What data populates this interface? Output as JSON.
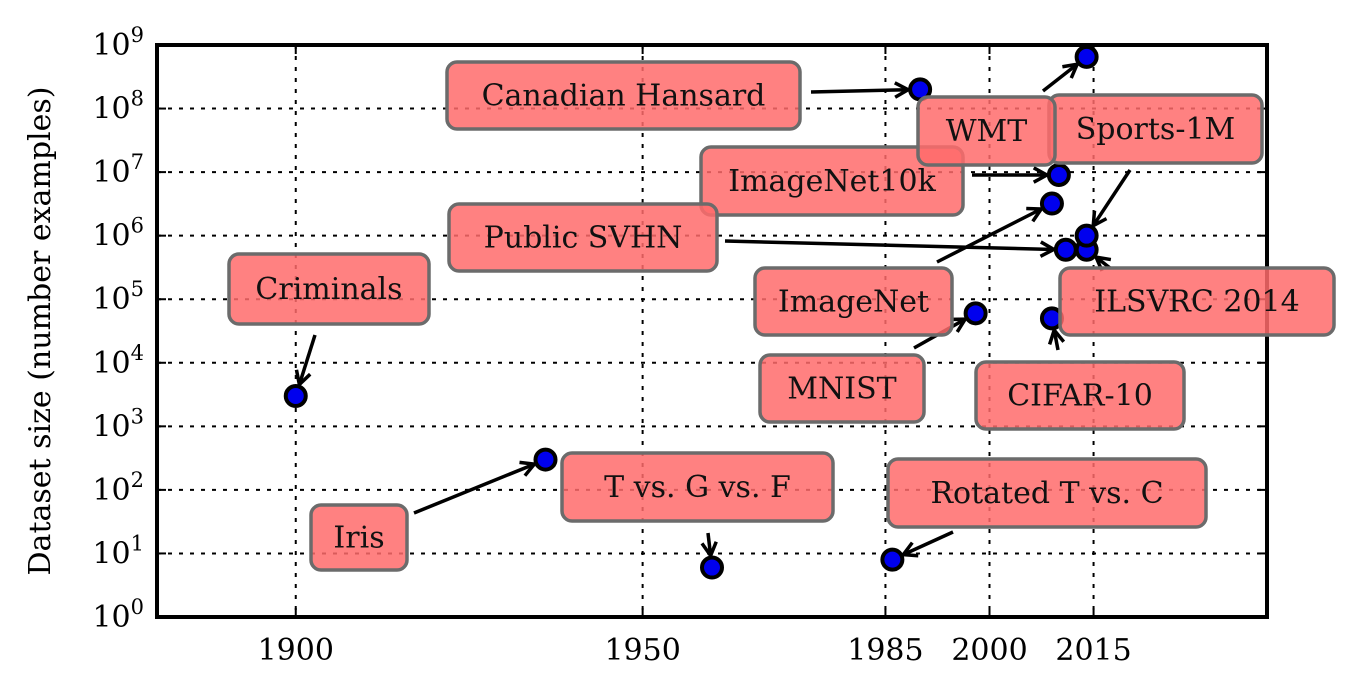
{
  "chart_data": {
    "type": "scatter",
    "title": "",
    "xlabel": "",
    "ylabel": "Dataset size (number examples)",
    "yscale": "log",
    "xlim": [
      1880,
      2040
    ],
    "ylim": [
      1,
      1000000000
    ],
    "grid": true,
    "x_ticks": [
      {
        "value": 1900,
        "label": "1900"
      },
      {
        "value": 1950,
        "label": "1950"
      },
      {
        "value": 1985,
        "label": "1985"
      },
      {
        "value": 2000,
        "label": "2000"
      },
      {
        "value": 2015,
        "label": "2015"
      }
    ],
    "y_ticks": [
      {
        "value": 1,
        "base": "10",
        "exp": "0"
      },
      {
        "value": 10,
        "base": "10",
        "exp": "1"
      },
      {
        "value": 100,
        "base": "10",
        "exp": "2"
      },
      {
        "value": 1000,
        "base": "10",
        "exp": "3"
      },
      {
        "value": 10000,
        "base": "10",
        "exp": "4"
      },
      {
        "value": 100000,
        "base": "10",
        "exp": "5"
      },
      {
        "value": 1000000,
        "base": "10",
        "exp": "6"
      },
      {
        "value": 10000000,
        "base": "10",
        "exp": "7"
      },
      {
        "value": 100000000,
        "base": "10",
        "exp": "8"
      },
      {
        "value": 1000000000,
        "base": "10",
        "exp": "9"
      }
    ],
    "points": [
      {
        "name": "Criminals",
        "x": 1900,
        "y": 3000
      },
      {
        "name": "Iris",
        "x": 1936,
        "y": 300
      },
      {
        "name": "T vs. G vs. F",
        "x": 1960,
        "y": 6
      },
      {
        "name": "Rotated T vs. C",
        "x": 1986,
        "y": 8
      },
      {
        "name": "Canadian Hansard",
        "x": 1990,
        "y": 200000000
      },
      {
        "name": "MNIST",
        "x": 1998,
        "y": 60000
      },
      {
        "name": "CIFAR-10",
        "x": 2009,
        "y": 50000
      },
      {
        "name": "ImageNet",
        "x": 2009,
        "y": 3200000
      },
      {
        "name": "ImageNet10k",
        "x": 2010,
        "y": 9000000
      },
      {
        "name": "Public SVHN",
        "x": 2011,
        "y": 600000
      },
      {
        "name": "ILSVRC 2014",
        "x": 2014,
        "y": 600000
      },
      {
        "name": "Sports-1M",
        "x": 2014,
        "y": 1000000
      },
      {
        "name": "WMT",
        "x": 2014,
        "y": 650000000
      }
    ],
    "annotations": [
      {
        "label": "Criminals",
        "target": "Criminals"
      },
      {
        "label": "Iris",
        "target": "Iris"
      },
      {
        "label": "T vs. G vs. F",
        "target": "T vs. G vs. F"
      },
      {
        "label": "Rotated T vs. C",
        "target": "Rotated T vs. C"
      },
      {
        "label": "Canadian Hansard",
        "target": "Canadian Hansard"
      },
      {
        "label": "MNIST",
        "target": "MNIST"
      },
      {
        "label": "CIFAR-10",
        "target": "CIFAR-10"
      },
      {
        "label": "ImageNet",
        "target": "ImageNet"
      },
      {
        "label": "ImageNet10k",
        "target": "ImageNet10k"
      },
      {
        "label": "Public SVHN",
        "target": "Public SVHN"
      },
      {
        "label": "ILSVRC 2014",
        "target": "ILSVRC 2014"
      },
      {
        "label": "Sports-1M",
        "target": "Sports-1M"
      },
      {
        "label": "WMT",
        "target": "WMT"
      }
    ],
    "colors": {
      "point_fill": "#0000ee",
      "annotation_fill": "#ff6b6b",
      "annotation_border": "#6b6b6b"
    }
  }
}
